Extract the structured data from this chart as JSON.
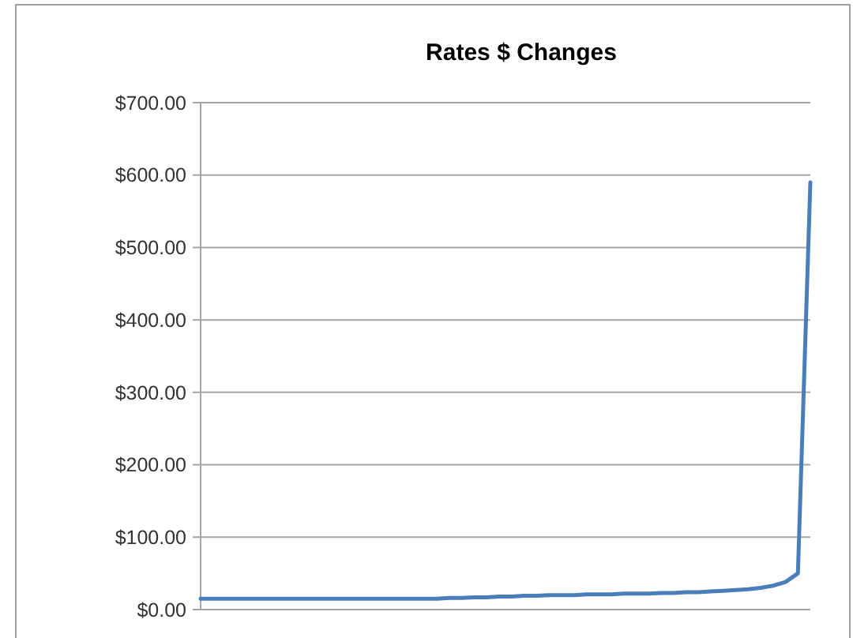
{
  "chart_data": {
    "type": "line",
    "title": "Rates $ Changes",
    "categories": [
      null,
      null,
      null,
      null,
      null,
      null,
      null,
      null,
      null,
      null,
      null,
      null,
      null,
      null,
      null,
      null,
      null,
      null,
      null,
      null,
      null,
      null,
      null,
      null,
      null,
      null,
      null,
      null,
      null,
      null,
      null,
      null,
      null,
      null,
      null,
      null,
      null,
      null,
      null,
      null,
      null,
      null,
      null,
      null,
      null,
      null,
      null,
      null,
      null,
      null
    ],
    "series": [
      {
        "color": "#4a7ebb",
        "values": [
          15,
          15,
          15,
          15,
          15,
          15,
          15,
          15,
          15,
          15,
          15,
          15,
          15,
          15,
          15,
          15,
          15,
          15,
          15,
          15,
          16,
          16,
          17,
          17,
          18,
          18,
          19,
          19,
          20,
          20,
          20,
          21,
          21,
          21,
          22,
          22,
          22,
          23,
          23,
          24,
          24,
          25,
          26,
          27,
          28,
          30,
          33,
          38,
          50,
          590
        ]
      }
    ],
    "ylim": [
      0,
      700
    ],
    "yticks": [
      {
        "value": 0,
        "label": "$0.00"
      },
      {
        "value": 100,
        "label": "$100.00"
      },
      {
        "value": 200,
        "label": "$200.00"
      },
      {
        "value": 300,
        "label": "$300.00"
      },
      {
        "value": 400,
        "label": "$400.00"
      },
      {
        "value": 500,
        "label": "$500.00"
      },
      {
        "value": 600,
        "label": "$600.00"
      },
      {
        "value": 700,
        "label": "$700.00"
      }
    ],
    "grid": "y",
    "marker": "none",
    "line_style": "solid"
  }
}
